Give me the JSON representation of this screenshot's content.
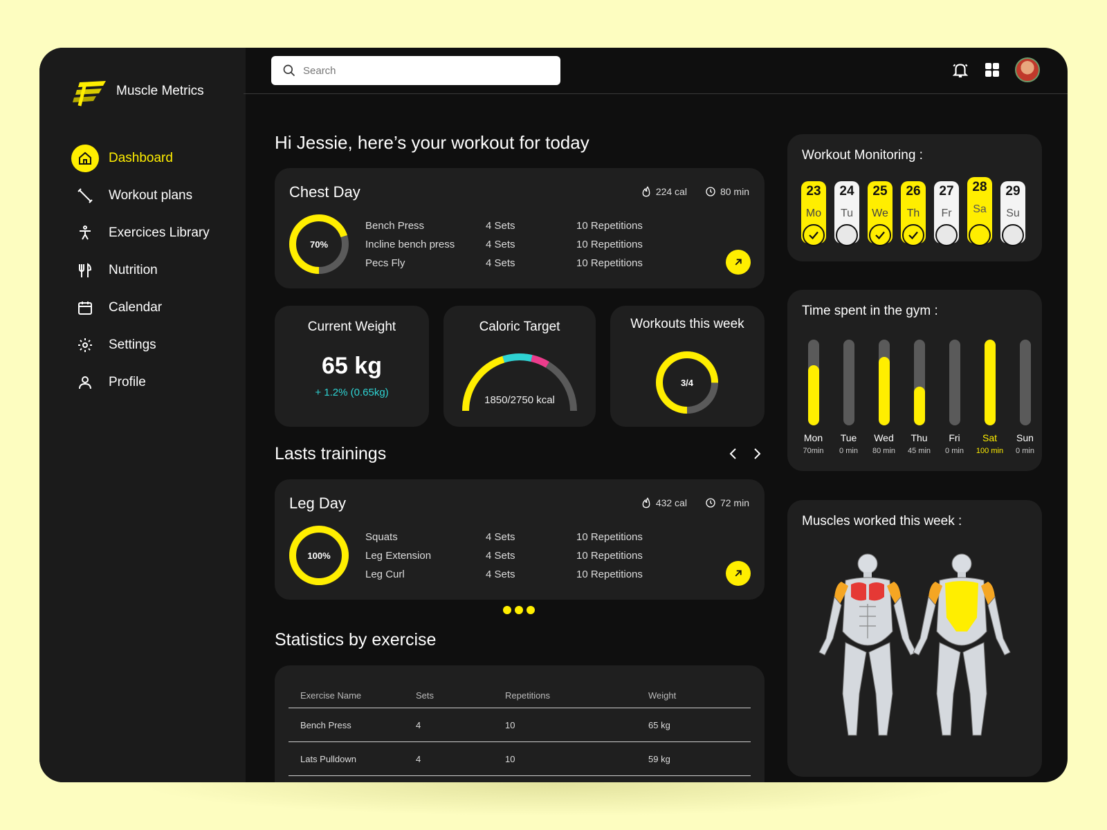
{
  "brand": {
    "name": "Muscle Metrics"
  },
  "search": {
    "placeholder": "Search"
  },
  "nav": [
    {
      "label": "Dashboard",
      "icon": "home-icon",
      "active": true
    },
    {
      "label": "Workout plans",
      "icon": "dumbbell-icon"
    },
    {
      "label": "Exercices Library",
      "icon": "person-icon"
    },
    {
      "label": "Nutrition",
      "icon": "fork-knife-icon"
    },
    {
      "label": "Calendar",
      "icon": "calendar-icon"
    },
    {
      "label": "Settings",
      "icon": "gear-icon"
    },
    {
      "label": "Profile",
      "icon": "user-icon"
    }
  ],
  "greeting": "Hi Jessie, here’s your workout for today",
  "today_workout": {
    "title": "Chest Day",
    "calories": "224 cal",
    "duration": "80 min",
    "progress_label": "70%",
    "progress": 0.7,
    "exercises": [
      {
        "name": "Bench Press",
        "sets": "4 Sets",
        "reps": "10 Repetitions"
      },
      {
        "name": "Incline bench press",
        "sets": "4 Sets",
        "reps": "10 Repetitions"
      },
      {
        "name": "Pecs Fly",
        "sets": "4 Sets",
        "reps": "10 Repetitions"
      }
    ]
  },
  "current_weight": {
    "title": "Current Weight",
    "value": "65 kg",
    "delta": "+ 1.2% (0.65kg)"
  },
  "caloric_target": {
    "title": "Caloric Target",
    "label": "1850/2750 kcal",
    "value": 1850,
    "target": 2750
  },
  "workouts_week": {
    "title": "Workouts this week",
    "label": "3/4",
    "done": 3,
    "total": 4
  },
  "last_trainings": {
    "title": "Lasts trainings",
    "item": {
      "title": "Leg Day",
      "calories": "432 cal",
      "duration": "72 min",
      "progress_label": "100%",
      "progress": 1.0,
      "exercises": [
        {
          "name": "Squats",
          "sets": "4 Sets",
          "reps": "10 Repetitions"
        },
        {
          "name": "Leg Extension",
          "sets": "4 Sets",
          "reps": "10 Repetitions"
        },
        {
          "name": "Leg Curl",
          "sets": "4 Sets",
          "reps": "10 Repetitions"
        }
      ]
    }
  },
  "statistics": {
    "title": "Statistics by exercise",
    "headers": [
      "Exercise Name",
      "Sets",
      "Repetitions",
      "Weight"
    ],
    "rows": [
      [
        "Bench Press",
        "4",
        "10",
        "65 kg"
      ],
      [
        "Lats Pulldown",
        "4",
        "10",
        "59 kg"
      ]
    ]
  },
  "monitoring": {
    "title": "Workout Monitoring :",
    "days": [
      {
        "num": "23",
        "abbr": "Mo",
        "state": "done"
      },
      {
        "num": "24",
        "abbr": "Tu",
        "state": "rest"
      },
      {
        "num": "25",
        "abbr": "We",
        "state": "done"
      },
      {
        "num": "26",
        "abbr": "Th",
        "state": "done"
      },
      {
        "num": "27",
        "abbr": "Fr",
        "state": "rest"
      },
      {
        "num": "28",
        "abbr": "Sa",
        "state": "today"
      },
      {
        "num": "29",
        "abbr": "Su",
        "state": "rest"
      }
    ]
  },
  "gym_time": {
    "title": "Time spent in the gym :",
    "max_minutes": 100,
    "days": [
      {
        "day": "Mon",
        "label": "70min",
        "minutes": 70
      },
      {
        "day": "Tue",
        "label": "0 min",
        "minutes": 0
      },
      {
        "day": "Wed",
        "label": "80 min",
        "minutes": 80
      },
      {
        "day": "Thu",
        "label": "45 min",
        "minutes": 45
      },
      {
        "day": "Fri",
        "label": "0 min",
        "minutes": 0
      },
      {
        "day": "Sat",
        "label": "100 min",
        "minutes": 100,
        "highlight": true
      },
      {
        "day": "Sun",
        "label": "0 min",
        "minutes": 0
      }
    ]
  },
  "muscles": {
    "title": "Muscles worked this week :"
  },
  "colors": {
    "accent": "#ffee00",
    "panel": "#1f1f1f",
    "sidebar": "#1b1b1b",
    "cyan": "#2ed3d3",
    "magenta": "#ec3c8c"
  }
}
